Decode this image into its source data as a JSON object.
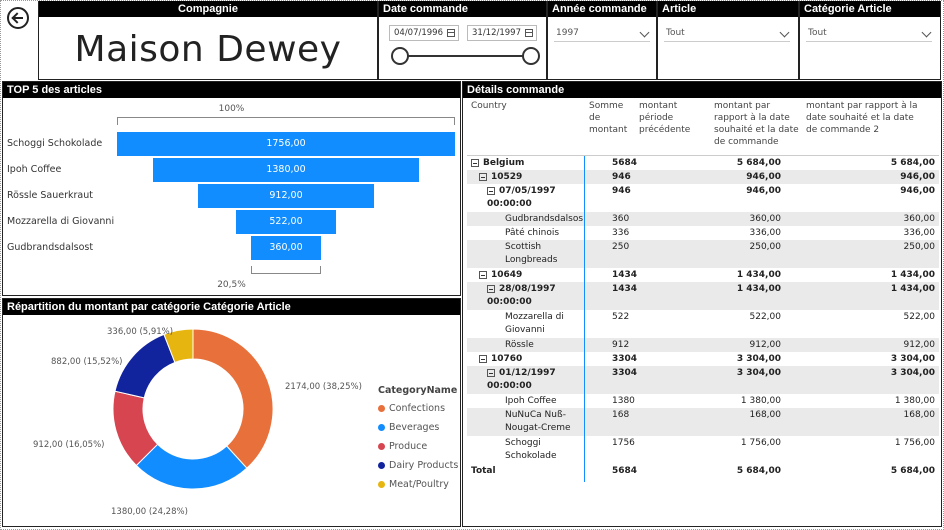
{
  "header": {
    "company_title": "Compagnie",
    "company_name": "Maison Dewey",
    "date_title": "Date commande",
    "date_start": "04/07/1996",
    "date_end": "31/12/1997",
    "year_title": "Année commande",
    "year_value": "1997",
    "article_title": "Article",
    "article_value": "Tout",
    "category_title": "Catégorie Article",
    "category_value": "Tout"
  },
  "funnel": {
    "title": "TOP 5 des articles",
    "top_pct": "100%",
    "bottom_pct": "20,5%",
    "items": [
      {
        "label": "Schoggi Schokolade",
        "value": "1756,00"
      },
      {
        "label": "Ipoh Coffee",
        "value": "1380,00"
      },
      {
        "label": "Rössle Sauerkraut",
        "value": "912,00"
      },
      {
        "label": "Mozzarella di Giovanni",
        "value": "522,00"
      },
      {
        "label": "Gudbrandsdalsost",
        "value": "360,00"
      }
    ]
  },
  "donut": {
    "title": "Répartition du montant par catégorie Catégorie Article",
    "legend_title": "CategoryName",
    "slices": [
      {
        "name": "Confections",
        "label": "2174,00 (38,25%)",
        "color": "#e8703a"
      },
      {
        "name": "Beverages",
        "label": "1380,00 (24,28%)",
        "color": "#118dff"
      },
      {
        "name": "Produce",
        "label": "912,00 (16,05%)",
        "color": "#d64550"
      },
      {
        "name": "Dairy Products",
        "label": "882,00 (15,52%)",
        "color": "#12239e"
      },
      {
        "name": "Meat/Poultry",
        "label": "336,00 (5,91%)",
        "color": "#e6b50f"
      }
    ]
  },
  "chart_data": {
    "type": "pie",
    "categories": [
      "Confections",
      "Beverages",
      "Produce",
      "Dairy Products",
      "Meat/Poultry"
    ],
    "values": [
      2174,
      1380,
      912,
      882,
      336
    ]
  },
  "details": {
    "title": "Détails commande",
    "headers": {
      "country": "Country",
      "somme": "Somme de montant",
      "prev": "montant période précédente",
      "rapport": "montant par rapport à la date souhaité et la date de commande",
      "rapport2": "montant par rapport à la date souhaité et la date de commande 2"
    },
    "rows": [
      {
        "label": "Belgium",
        "somme": "5684",
        "rapport": "5 684,00",
        "rapport2": "5 684,00"
      },
      {
        "label": "10529",
        "somme": "946",
        "rapport": "946,00",
        "rapport2": "946,00"
      },
      {
        "label": "07/05/1997 00:00:00",
        "somme": "946",
        "rapport": "946,00",
        "rapport2": "946,00"
      },
      {
        "label": "Gudbrandsdalsos",
        "somme": "360",
        "rapport": "360,00",
        "rapport2": "360,00"
      },
      {
        "label": "Pâté chinois",
        "somme": "336",
        "rapport": "336,00",
        "rapport2": "336,00"
      },
      {
        "label": "Scottish Longbreads",
        "somme": "250",
        "rapport": "250,00",
        "rapport2": "250,00"
      },
      {
        "label": "10649",
        "somme": "1434",
        "rapport": "1 434,00",
        "rapport2": "1 434,00"
      },
      {
        "label": "28/08/1997 00:00:00",
        "somme": "1434",
        "rapport": "1 434,00",
        "rapport2": "1 434,00"
      },
      {
        "label": "Mozzarella di Giovanni",
        "somme": "522",
        "rapport": "522,00",
        "rapport2": "522,00"
      },
      {
        "label": "Rössle",
        "somme": "912",
        "rapport": "912,00",
        "rapport2": "912,00"
      },
      {
        "label": "10760",
        "somme": "3304",
        "rapport": "3 304,00",
        "rapport2": "3 304,00"
      },
      {
        "label": "01/12/1997 00:00:00",
        "somme": "3304",
        "rapport": "3 304,00",
        "rapport2": "3 304,00"
      },
      {
        "label": "Ipoh Coffee",
        "somme": "1380",
        "rapport": "1 380,00",
        "rapport2": "1 380,00"
      },
      {
        "label": "NuNuCa Nuß-Nougat-Creme",
        "somme": "168",
        "rapport": "168,00",
        "rapport2": "168,00"
      },
      {
        "label": "Schoggi Schokolade",
        "somme": "1756",
        "rapport": "1 756,00",
        "rapport2": "1 756,00"
      },
      {
        "label": "Total",
        "somme": "5684",
        "rapport": "5 684,00",
        "rapport2": "5 684,00"
      }
    ]
  }
}
